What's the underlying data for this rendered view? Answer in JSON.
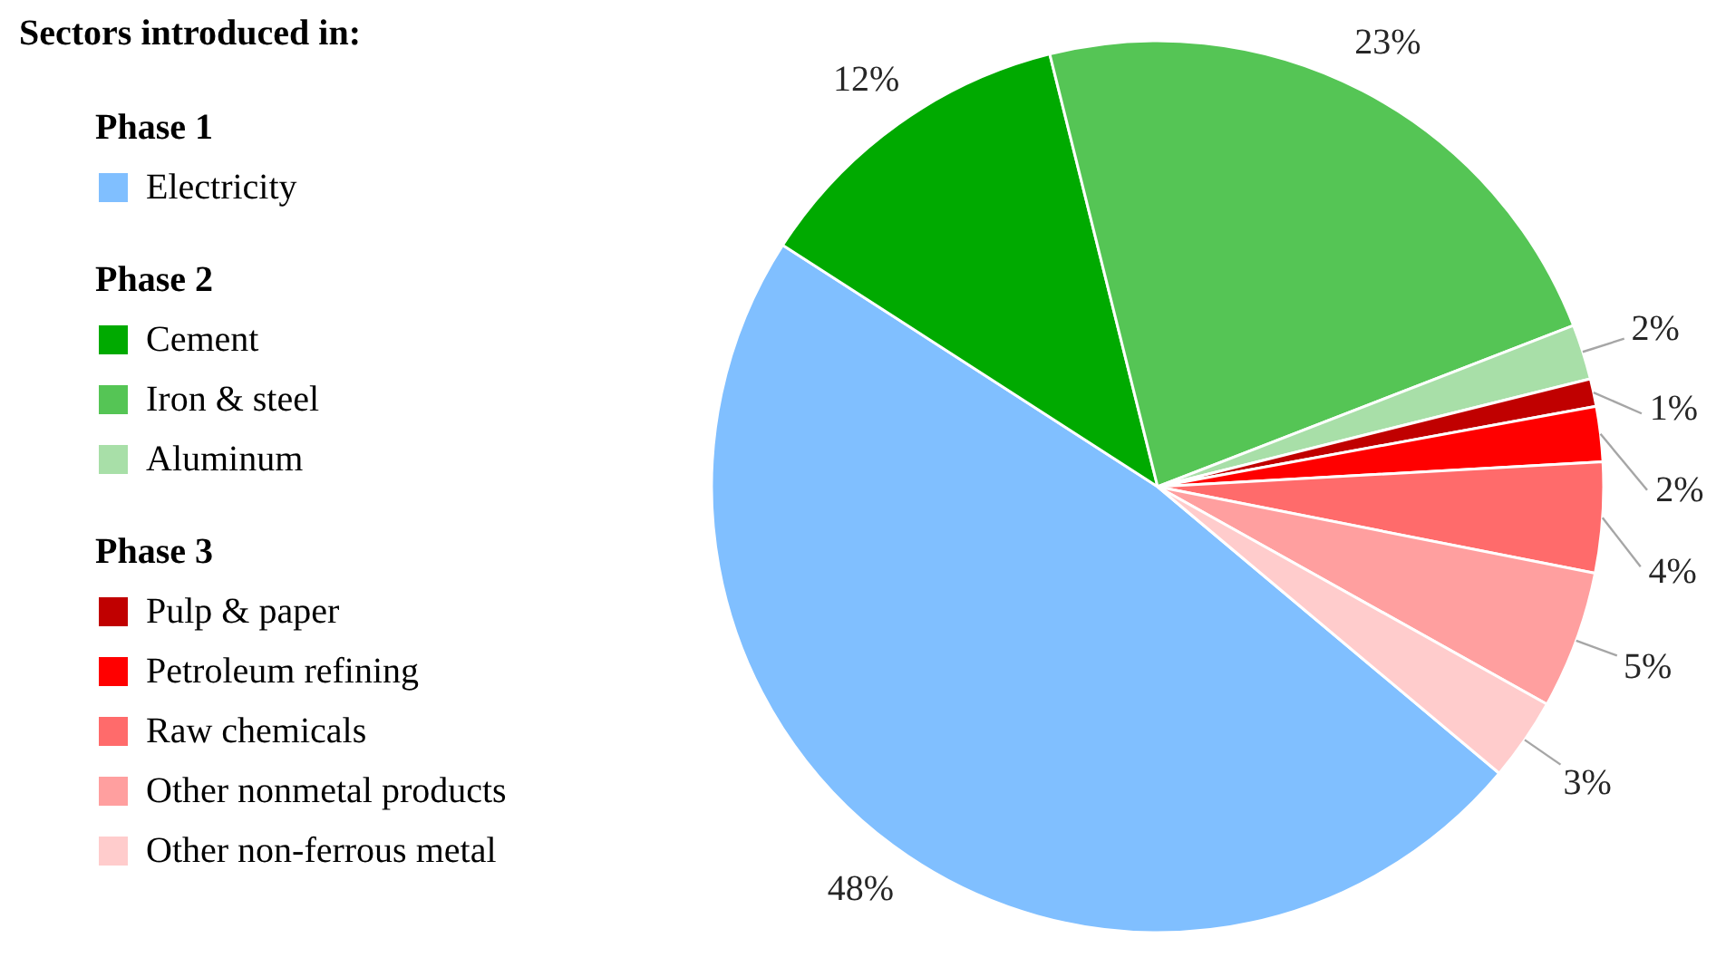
{
  "chart_data": {
    "type": "pie",
    "legend_title": "Sectors introduced in:",
    "annotations": [
      "Phase 1",
      "Phase 2",
      "Phase 3"
    ],
    "categories": [
      "Electricity",
      "Cement",
      "Iron & steel",
      "Aluminum",
      "Pulp & paper",
      "Petroleum refining",
      "Raw chemicals",
      "Other nonmetal products",
      "Other non-ferrous metal"
    ],
    "values": [
      48,
      12,
      23,
      2,
      1,
      2,
      4,
      5,
      3
    ],
    "value_labels": [
      "48%",
      "12%",
      "23%",
      "2%",
      "1%",
      "2%",
      "4%",
      "5%",
      "3%"
    ],
    "colors": [
      "#80bfff",
      "#00aa00",
      "#55c555",
      "#a8dfa8",
      "#c00000",
      "#ff0000",
      "#ff6b6b",
      "#ff9f9f",
      "#ffcccc"
    ],
    "legend": "left"
  }
}
